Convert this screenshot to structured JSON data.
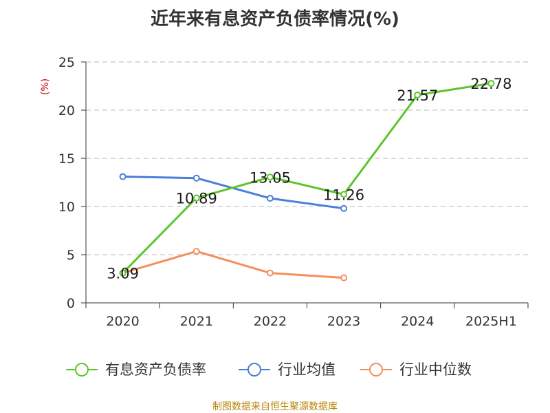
{
  "chart_data": {
    "type": "line",
    "title": "近年来有息资产负债率情况(%)",
    "ylabel": "(%)",
    "xlabel": "",
    "categories": [
      "2020",
      "2021",
      "2022",
      "2023",
      "2024",
      "2025H1"
    ],
    "ylim": [
      0,
      25
    ],
    "yticks": [
      0,
      5,
      10,
      15,
      20,
      25
    ],
    "grid": true,
    "legend_position": "bottom",
    "series": [
      {
        "name": "有息资产负债率",
        "color": "#5cc52a",
        "values": [
          3.09,
          10.89,
          13.05,
          11.26,
          21.57,
          22.78
        ],
        "labels": [
          "3.09",
          "10.89",
          "13.05",
          "11.26",
          "21.57",
          "22.78"
        ]
      },
      {
        "name": "行业均值",
        "color": "#4a7fd9",
        "values": [
          13.1,
          12.95,
          10.85,
          9.8,
          null,
          null
        ]
      },
      {
        "name": "行业中位数",
        "color": "#f58e5e",
        "values": [
          3.1,
          5.35,
          3.1,
          2.6,
          null,
          null
        ]
      }
    ]
  },
  "source": "制图数据来自恒生聚源数据库"
}
